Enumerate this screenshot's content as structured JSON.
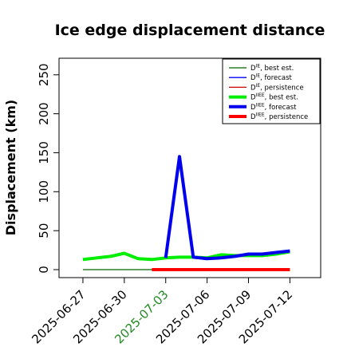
{
  "chart_data": {
    "type": "line",
    "title": "Ice edge displacement distance",
    "xlabel": "",
    "ylabel": "Displacement (km)",
    "ylim": [
      0,
      260
    ],
    "yticks": [
      0,
      50,
      100,
      150,
      200,
      250
    ],
    "xlim": [
      "2025-06-25T12:00",
      "2025-07-14"
    ],
    "xticks": [
      {
        "date": "2025-06-27",
        "label": "2025-06-27",
        "color": "#000000"
      },
      {
        "date": "2025-06-30",
        "label": "2025-06-30",
        "color": "#000000"
      },
      {
        "date": "2025-07-03",
        "label": "2025-07-03",
        "color": "#228B22"
      },
      {
        "date": "2025-07-06",
        "label": "2025-07-06",
        "color": "#000000"
      },
      {
        "date": "2025-07-09",
        "label": "2025-07-09",
        "color": "#000000"
      },
      {
        "date": "2025-07-12",
        "label": "2025-07-12",
        "color": "#000000"
      }
    ],
    "grid": false,
    "legend_position": "top-right",
    "series": [
      {
        "name": "D^IE, best est.",
        "legend_main": "D",
        "legend_sup": "IE",
        "legend_rest": ", best est.",
        "color": "#006400",
        "width": 1.3,
        "x": [
          "2025-06-27",
          "2025-07-03"
        ],
        "y": [
          0,
          0
        ]
      },
      {
        "name": "D^IE, forecast",
        "legend_main": "D",
        "legend_sup": "IE",
        "legend_rest": ", forecast",
        "color": "#0000ff",
        "width": 1.3,
        "x": [],
        "y": []
      },
      {
        "name": "D^IE, persistence",
        "legend_main": "D",
        "legend_sup": "IE",
        "legend_rest": ", persistence",
        "color": "#cc0000",
        "width": 1.3,
        "x": [],
        "y": []
      },
      {
        "name": "D^IIEE, best est.",
        "legend_main": "D",
        "legend_sup": "IIEE",
        "legend_rest": ", best est.",
        "color": "#00ee00",
        "width": 4,
        "x": [
          "2025-06-27",
          "2025-06-28",
          "2025-06-29",
          "2025-06-30",
          "2025-07-01",
          "2025-07-02",
          "2025-07-03",
          "2025-07-04",
          "2025-07-05",
          "2025-07-06",
          "2025-07-07",
          "2025-07-08",
          "2025-07-09",
          "2025-07-10",
          "2025-07-11",
          "2025-07-12"
        ],
        "y": [
          13,
          15,
          17,
          21,
          14,
          13,
          15,
          16,
          16,
          15,
          19,
          18,
          18,
          18,
          20,
          23
        ]
      },
      {
        "name": "D^IIEE, forecast",
        "legend_main": "D",
        "legend_sup": "IIEE",
        "legend_rest": ", forecast",
        "color": "#0000ee",
        "width": 4,
        "x": [
          "2025-07-03",
          "2025-07-04",
          "2025-07-05",
          "2025-07-06",
          "2025-07-07",
          "2025-07-08",
          "2025-07-09",
          "2025-07-10",
          "2025-07-11",
          "2025-07-12"
        ],
        "y": [
          15,
          145,
          16,
          14,
          15,
          17,
          20,
          20,
          22,
          24
        ]
      },
      {
        "name": "D^IIEE, persistence",
        "legend_main": "D",
        "legend_sup": "IIEE",
        "legend_rest": ", persistence",
        "color": "#ff0000",
        "width": 4,
        "x": [
          "2025-07-02",
          "2025-07-12"
        ],
        "y": [
          0,
          0
        ]
      }
    ]
  }
}
